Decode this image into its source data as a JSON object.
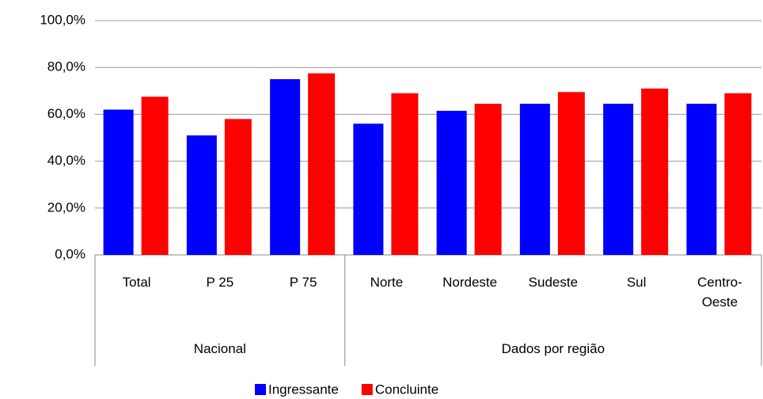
{
  "chart_data": {
    "type": "bar",
    "categories": [
      "Total",
      "P 25",
      "P 75",
      "Norte",
      "Nordeste",
      "Sudeste",
      "Sul",
      "Centro-Oeste"
    ],
    "groups": [
      {
        "name": "Nacional",
        "count": 3
      },
      {
        "name": "Dados por região",
        "count": 5
      }
    ],
    "series": [
      {
        "name": "Ingressante",
        "color": "#0000ff",
        "values": [
          62,
          51,
          75,
          56,
          61.5,
          64.5,
          64.5,
          64.5
        ]
      },
      {
        "name": "Concluinte",
        "color": "#ff0000",
        "values": [
          67.5,
          58,
          77.5,
          69,
          64.5,
          69.5,
          71,
          69
        ]
      }
    ],
    "ylim": [
      0,
      100
    ],
    "yticks": [
      {
        "value": 0,
        "label": "0,0%"
      },
      {
        "value": 20,
        "label": "20,0%"
      },
      {
        "value": 40,
        "label": "40,0%"
      },
      {
        "value": 60,
        "label": "60,0%"
      },
      {
        "value": 80,
        "label": "80,0%"
      },
      {
        "value": 100,
        "label": "100,0%"
      }
    ],
    "grid": true,
    "legend": "bottom"
  }
}
